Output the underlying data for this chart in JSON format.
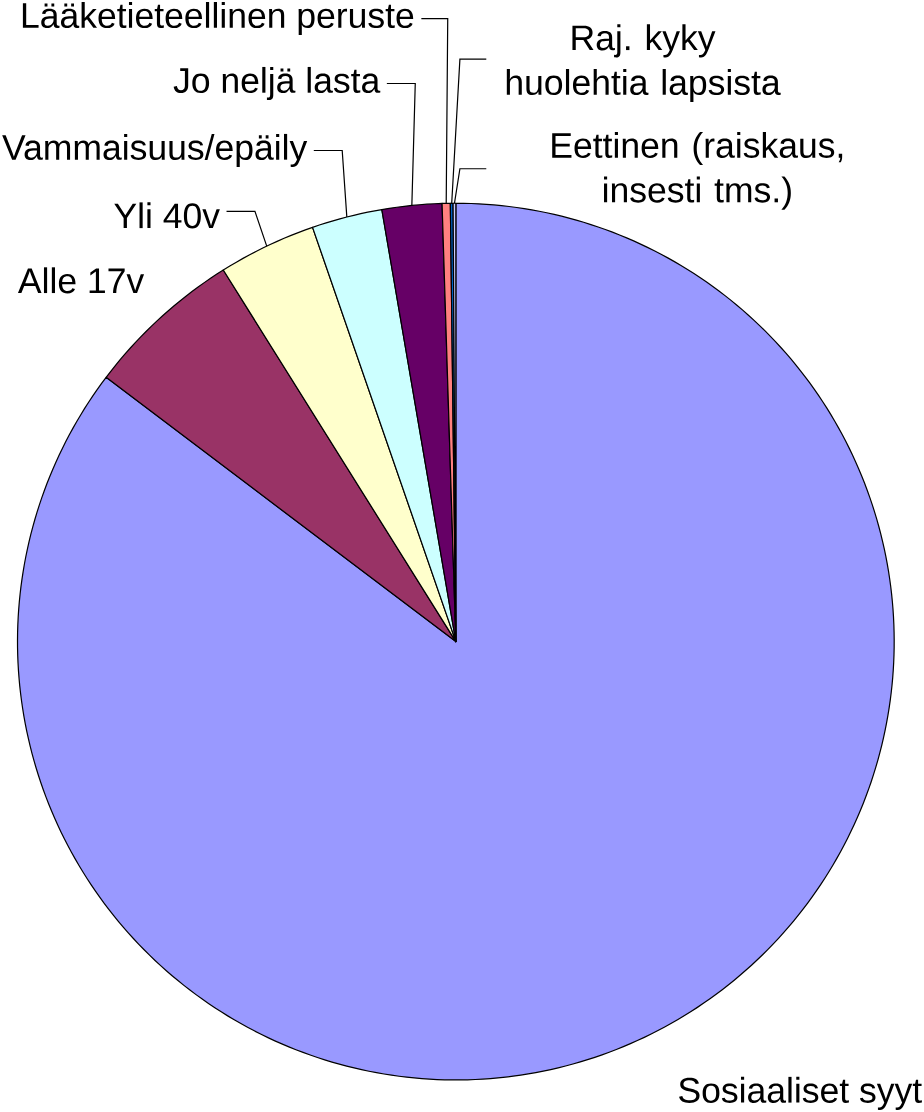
{
  "chart_data": {
    "type": "pie",
    "categories": [
      "Sosiaaliset syyt",
      "Alle 17v",
      "Yli 40v",
      "Vammaisuus/epäily",
      "Jo neljä lasta",
      "Lääketieteellinen peruste",
      "Raj. kyky huolehtia lapsista",
      "Eettinen (raiskaus, insesti tms.)"
    ],
    "values": [
      85.3,
      5.8,
      3.6,
      2.6,
      2.2,
      0.3,
      0.1,
      0.1
    ],
    "colors": [
      "#9999ff",
      "#993366",
      "#ffffcc",
      "#ccffff",
      "#660066",
      "#ff8080",
      "#0066cc",
      "#ccccff"
    ]
  }
}
